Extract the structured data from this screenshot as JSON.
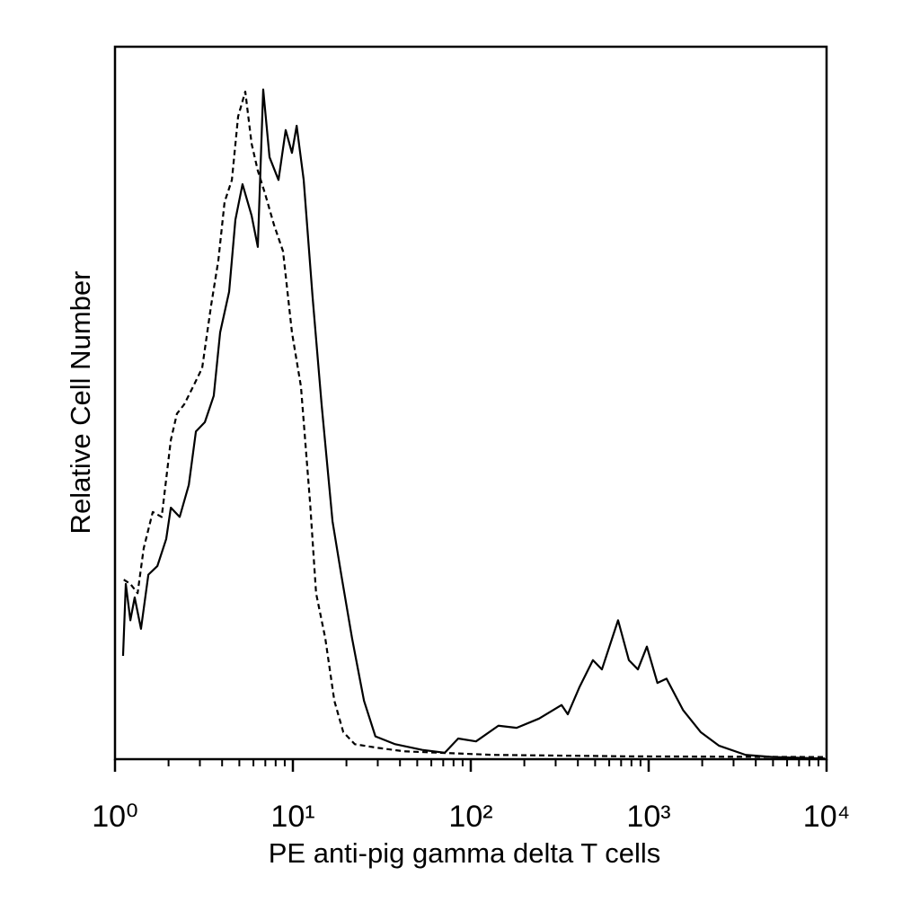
{
  "chart_data": {
    "type": "line",
    "xlabel": "PE anti-pig gamma delta T cells",
    "ylabel": "Relative Cell Number",
    "xscale": "log",
    "xlim": [
      1,
      10000
    ],
    "xticks": [
      {
        "value": 1,
        "label": "10⁰"
      },
      {
        "value": 10,
        "label": "10¹"
      },
      {
        "value": 100,
        "label": "10²"
      },
      {
        "value": 1000,
        "label": "10³"
      },
      {
        "value": 10000,
        "label": "10⁴"
      }
    ],
    "xminorticks": [
      2,
      3,
      4,
      5,
      6,
      7,
      8,
      9,
      20,
      30,
      40,
      50,
      60,
      70,
      80,
      90,
      200,
      300,
      400,
      500,
      600,
      700,
      800,
      900,
      2000,
      3000,
      4000,
      5000,
      6000,
      7000,
      8000,
      9000
    ],
    "ylim": [
      0,
      100
    ],
    "grid": false,
    "series": [
      {
        "color": "#000000",
        "dashed": false,
        "x": [
          1.11,
          1.15,
          1.22,
          1.29,
          1.4,
          1.54,
          1.73,
          1.94,
          2.06,
          2.31,
          2.6,
          2.85,
          3.2,
          3.59,
          3.9,
          4.38,
          4.75,
          5.21,
          5.86,
          6.35,
          6.81,
          7.39,
          8.3,
          9.11,
          9.88,
          10.5,
          11.5,
          12.9,
          14.5,
          16.7,
          18.7,
          21.5,
          25.1,
          29.1,
          37.6,
          53.4,
          71.4,
          85.0,
          107,
          143,
          181,
          242,
          324,
          351,
          408,
          486,
          546,
          673,
          774,
          870,
          977,
          1120,
          1260,
          1560,
          1960,
          2480,
          3510,
          4980,
          9770
        ],
        "values": [
          14.5,
          24.6,
          19.5,
          22.7,
          18.3,
          25.9,
          27.1,
          30.9,
          35.3,
          34,
          38.5,
          46,
          47.3,
          51,
          59.9,
          65.6,
          75.7,
          80.7,
          76.3,
          71.9,
          94,
          84.5,
          81.3,
          88.3,
          85.1,
          88.9,
          81.3,
          64.9,
          49.8,
          33.4,
          25.9,
          17,
          8.2,
          3.2,
          2.1,
          1.3,
          0.9,
          2.9,
          2.5,
          4.7,
          4.4,
          5.7,
          7.6,
          6.3,
          10.1,
          13.9,
          12.6,
          19.5,
          13.9,
          12.6,
          15.8,
          10.7,
          11.3,
          6.9,
          3.8,
          1.9,
          0.6,
          0.3,
          0.1
        ]
      },
      {
        "color": "#000000",
        "dashed": true,
        "x": [
          1.12,
          1.22,
          1.34,
          1.45,
          1.63,
          1.83,
          2.06,
          2.23,
          2.45,
          2.75,
          3.09,
          3.47,
          3.81,
          4.13,
          4.54,
          4.92,
          5.4,
          5.86,
          6.35,
          6.97,
          7.83,
          8.8,
          9.88,
          11.1,
          12.5,
          13.5,
          15.2,
          17.1,
          19.2,
          22.3,
          29.8,
          42.3,
          67.3,
          135,
          774,
          9770
        ],
        "values": [
          25.2,
          24.6,
          23.3,
          29.6,
          34.7,
          34,
          44.8,
          48.5,
          49.8,
          52.3,
          54.9,
          63.7,
          70,
          78.2,
          81.3,
          90.2,
          93.7,
          86.4,
          82.6,
          79.4,
          75,
          71.3,
          59.9,
          52.3,
          35.9,
          23.3,
          17,
          8.2,
          3.8,
          2.1,
          1.6,
          1.1,
          0.9,
          0.6,
          0.4,
          0.3
        ]
      }
    ]
  }
}
